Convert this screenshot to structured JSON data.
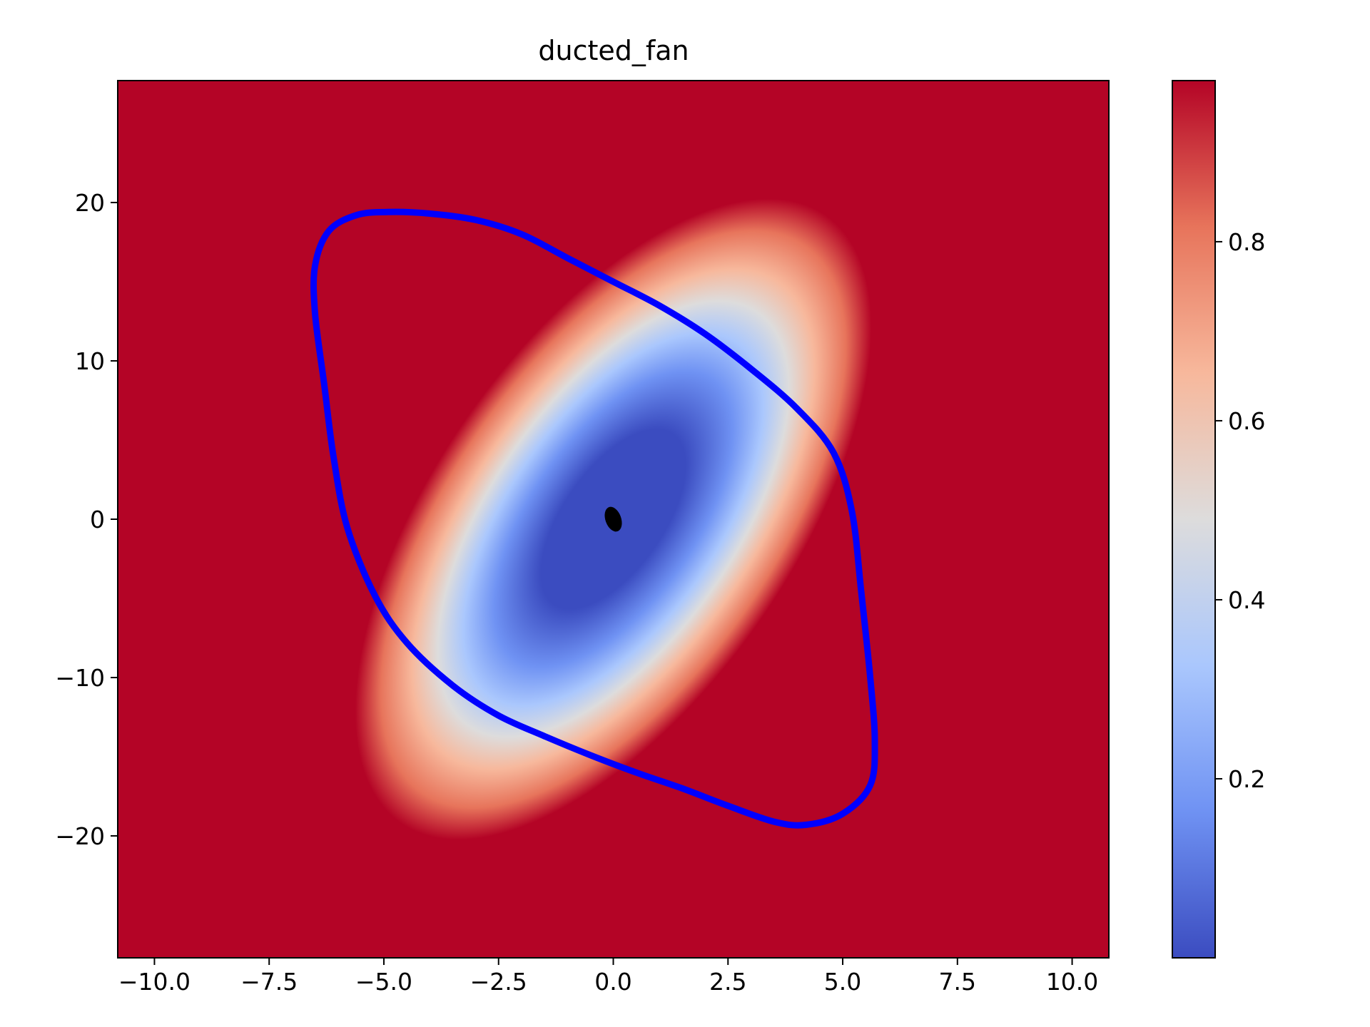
{
  "chart_data": {
    "type": "heatmap",
    "title": "ducted_fan",
    "xlabel": "",
    "ylabel": "",
    "xlim": [
      -10.8,
      10.8
    ],
    "ylim": [
      -27.7,
      27.7
    ],
    "x_ticks": [
      {
        "value": -10.0,
        "label": "−10.0"
      },
      {
        "value": -7.5,
        "label": "−7.5"
      },
      {
        "value": -5.0,
        "label": "−5.0"
      },
      {
        "value": -2.5,
        "label": "−2.5"
      },
      {
        "value": 0.0,
        "label": "0.0"
      },
      {
        "value": 2.5,
        "label": "2.5"
      },
      {
        "value": 5.0,
        "label": "5.0"
      },
      {
        "value": 7.5,
        "label": "7.5"
      },
      {
        "value": 10.0,
        "label": "10.0"
      }
    ],
    "y_ticks": [
      {
        "value": 20,
        "label": "20"
      },
      {
        "value": 10,
        "label": "10"
      },
      {
        "value": 0,
        "label": "0"
      },
      {
        "value": -10,
        "label": "−10"
      },
      {
        "value": -20,
        "label": "−20"
      }
    ],
    "colormap": "coolwarm",
    "colorbar": {
      "range": [
        0.0,
        0.98
      ],
      "ticks": [
        {
          "value": 0.2,
          "label": "0.2"
        },
        {
          "value": 0.4,
          "label": "0.4"
        },
        {
          "value": 0.6,
          "label": "0.6"
        },
        {
          "value": 0.8,
          "label": "0.8"
        }
      ],
      "colors": [
        "#3b4cc0",
        "#6f92f3",
        "#aac7fd",
        "#dddcdc",
        "#f7b89c",
        "#e7745b",
        "#b40426"
      ]
    },
    "heatmap_field": {
      "description": "0 at origin, rising toward 1 away from a tilted elongated region",
      "center": [
        0,
        0
      ],
      "contour_level": 0.8
    },
    "contour": {
      "color": "#0000ff",
      "points": [
        [
          -4.9,
          19.4
        ],
        [
          -4.0,
          19.3
        ],
        [
          -3.0,
          18.9
        ],
        [
          -2.0,
          18.0
        ],
        [
          -1.0,
          16.5
        ],
        [
          0.0,
          15.0
        ],
        [
          1.0,
          13.5
        ],
        [
          2.0,
          11.7
        ],
        [
          3.0,
          9.5
        ],
        [
          4.0,
          7.0
        ],
        [
          4.8,
          4.2
        ],
        [
          5.2,
          0.5
        ],
        [
          5.4,
          -4.5
        ],
        [
          5.6,
          -10.0
        ],
        [
          5.7,
          -14.0
        ],
        [
          5.6,
          -16.8
        ],
        [
          5.0,
          -18.6
        ],
        [
          4.2,
          -19.3
        ],
        [
          3.5,
          -19.1
        ],
        [
          2.5,
          -18.1
        ],
        [
          1.5,
          -17.0
        ],
        [
          0.5,
          -16.0
        ],
        [
          -0.5,
          -14.9
        ],
        [
          -1.5,
          -13.7
        ],
        [
          -2.5,
          -12.4
        ],
        [
          -3.5,
          -10.5
        ],
        [
          -4.5,
          -7.8
        ],
        [
          -5.2,
          -4.8
        ],
        [
          -5.8,
          -0.5
        ],
        [
          -6.1,
          4.0
        ],
        [
          -6.3,
          8.5
        ],
        [
          -6.5,
          13.0
        ],
        [
          -6.5,
          16.0
        ],
        [
          -6.2,
          18.2
        ],
        [
          -5.6,
          19.2
        ]
      ]
    },
    "center_marker": {
      "x": 0.0,
      "y": 0.0,
      "color": "#000000"
    }
  }
}
